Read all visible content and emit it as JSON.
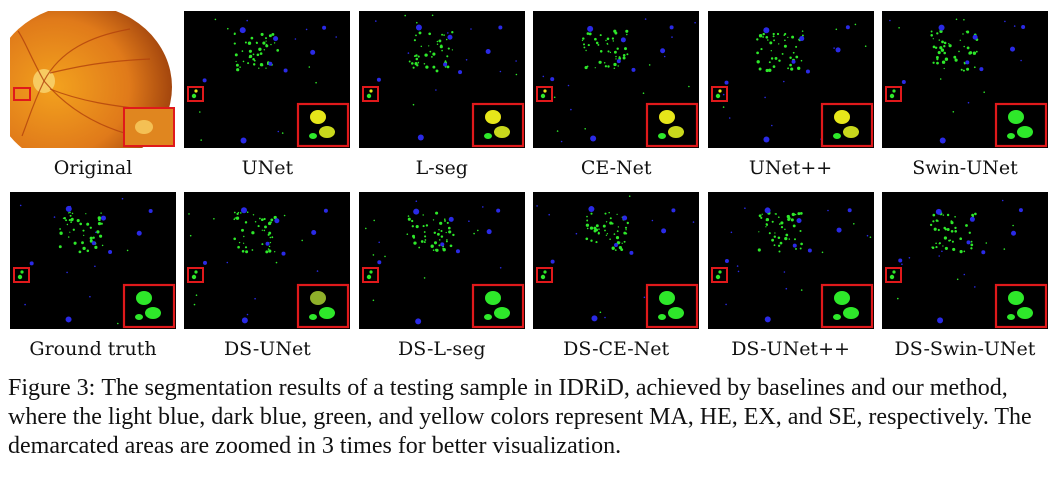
{
  "figure": {
    "rows": [
      {
        "panels": [
          {
            "label": "Original",
            "kind": "original"
          },
          {
            "label": "UNet",
            "kind": "seg",
            "zoom": "yellow"
          },
          {
            "label": "L-seg",
            "kind": "seg",
            "zoom": "yellow"
          },
          {
            "label": "CE-Net",
            "kind": "seg",
            "zoom": "yellow"
          },
          {
            "label": "UNet++",
            "kind": "seg",
            "zoom": "yellow"
          },
          {
            "label": "Swin-UNet",
            "kind": "seg",
            "zoom": "green"
          }
        ]
      },
      {
        "panels": [
          {
            "label": "Ground truth",
            "kind": "seg",
            "zoom": "green"
          },
          {
            "label": "DS-UNet",
            "kind": "seg",
            "zoom": "olive"
          },
          {
            "label": "DS-L-seg",
            "kind": "seg",
            "zoom": "green"
          },
          {
            "label": "DS-CE-Net",
            "kind": "seg",
            "zoom": "green"
          },
          {
            "label": "DS-UNet++",
            "kind": "seg",
            "zoom": "green"
          },
          {
            "label": "DS-Swin-UNet",
            "kind": "seg",
            "zoom": "green"
          }
        ]
      }
    ],
    "caption_number": "Figure 3:",
    "caption_text": "The segmentation results of a testing sample in IDRiD, achieved by baselines and our method, where the light blue, dark blue, green, and yellow colors represent MA, HE, EX, and SE, respectively.  The demarcated areas are zoomed in 3 times for better visualization.",
    "colors": {
      "background": "#000000",
      "highlight_box": "#e0191b",
      "exudate_green": "#2ee82a",
      "hemorrhage_blue": "#2a2ae6",
      "soft_exudate_yellow": "#e6e61a",
      "fundus_orange": "#e07a1a"
    }
  }
}
